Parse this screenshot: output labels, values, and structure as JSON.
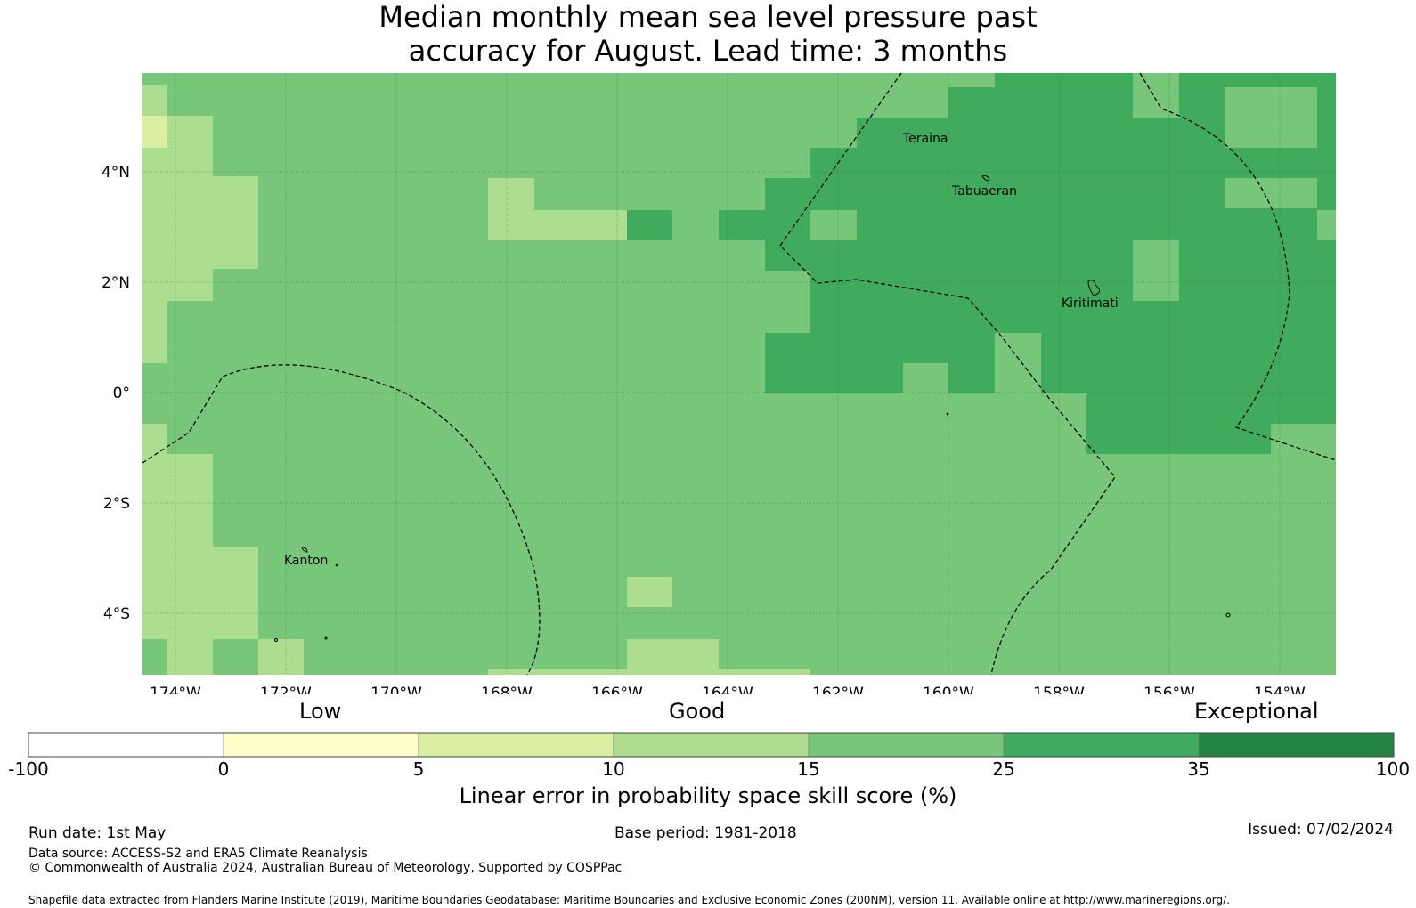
{
  "title_line1": "Median monthly mean sea level pressure past",
  "title_line2": "accuracy for August. Lead time: 3 months",
  "map": {
    "lon_ticks": [
      "174°W",
      "172°W",
      "170°W",
      "168°W",
      "166°W",
      "164°W",
      "162°W",
      "160°W",
      "158°W",
      "156°W",
      "154°W"
    ],
    "lat_ticks": [
      "4°N",
      "2°N",
      "0°",
      "2°S",
      "4°S"
    ],
    "places": [
      "Teraina",
      "Tabuaeran",
      "Kiritimati",
      "Kanton"
    ]
  },
  "colorbar": {
    "categories": [
      "Low",
      "Good",
      "Exceptional"
    ],
    "ticks": [
      "-100",
      "0",
      "5",
      "10",
      "15",
      "25",
      "35",
      "100"
    ],
    "colors": [
      "#ffffff",
      "#ffffcc",
      "#d9f0a3",
      "#addd8e",
      "#78c679",
      "#41ab5d",
      "#238443"
    ],
    "label": "Linear error in probability space skill score (%)"
  },
  "footer": {
    "run_date": "Run date: 1st May",
    "base_period": "Base period: 1981-2018",
    "issued": "Issued: 07/02/2024",
    "data_source": "Data source: ACCESS-S2 and ERA5 Climate Reanalysis",
    "copyright": "© Commonwealth of Australia 2024, Australian Bureau of Meteorology, Supported by COSPPac",
    "shapefile": "Shapefile data extracted from Flanders Marine Institute (2019), Maritime Boundaries Geodatabase: Maritime Boundaries and Exclusive Economic Zones (200NM), version 11. Available online at http://www.marineregions.org/."
  }
}
